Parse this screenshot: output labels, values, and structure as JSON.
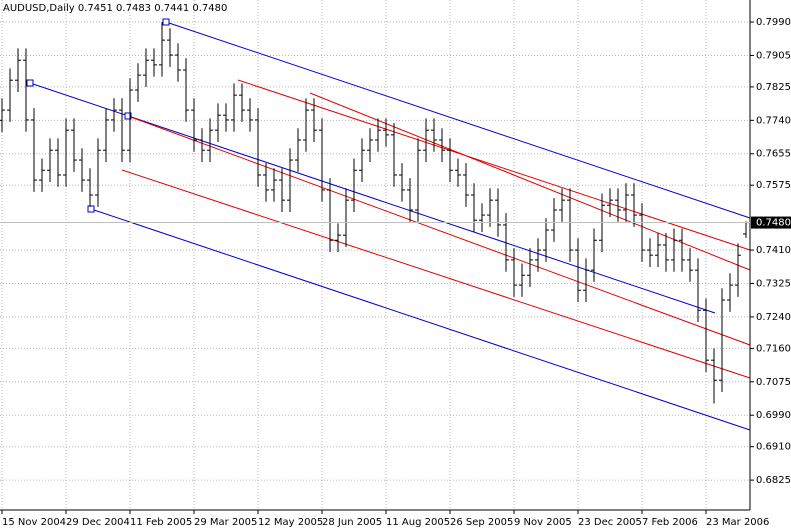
{
  "chart_data": {
    "type": "ohlc",
    "title": "AUDUSD,Daily  0.7451 0.7483 0.7441 0.7480",
    "categories": [
      "15 Nov 2004",
      null,
      null,
      null,
      null,
      null,
      null,
      null,
      "29 Dec 2004",
      null,
      null,
      null,
      null,
      null,
      null,
      null,
      "11 Feb 2005",
      null,
      null,
      null,
      null,
      null,
      null,
      null,
      "29 Mar 2005",
      null,
      null,
      null,
      null,
      null,
      null,
      null,
      "12 May 2005",
      null,
      null,
      null,
      null,
      null,
      null,
      null,
      "28 Jun 2005",
      null,
      null,
      null,
      null,
      null,
      null,
      null,
      "11 Aug 2005",
      null,
      null,
      null,
      null,
      null,
      null,
      null,
      "26 Sep 2005",
      null,
      null,
      null,
      null,
      null,
      null,
      null,
      "9 Nov 2005",
      null,
      null,
      null,
      null,
      null,
      null,
      null,
      "23 Dec 2005",
      null,
      null,
      null,
      null,
      null,
      null,
      null,
      "7 Feb 2006",
      null,
      null,
      null,
      null,
      null,
      null,
      null,
      "23 Mar 2006",
      null,
      null,
      null,
      null,
      null
    ],
    "open": [
      0.774,
      0.7766,
      0.7842,
      0.7893,
      0.7741,
      0.7588,
      0.7613,
      0.7664,
      0.7601,
      0.7715,
      0.7639,
      0.7588,
      0.755,
      0.7664,
      0.7741,
      0.7766,
      0.7664,
      0.7817,
      0.7855,
      0.7893,
      0.7881,
      0.7944,
      0.7906,
      0.7868,
      0.7766,
      0.769,
      0.7664,
      0.7715,
      0.7753,
      0.7741,
      0.7804,
      0.7766,
      0.7741,
      0.7601,
      0.7563,
      0.7588,
      0.7537,
      0.7639,
      0.769,
      0.7766,
      0.7715,
      0.7563,
      0.7435,
      0.7448,
      0.7537,
      0.7613,
      0.7664,
      0.769,
      0.7715,
      0.7703,
      0.7601,
      0.7563,
      0.7512,
      0.7664,
      0.7715,
      0.769,
      0.7664,
      0.7613,
      0.7601,
      0.755,
      0.7486,
      0.7499,
      0.7537,
      0.7474,
      0.7385,
      0.7321,
      0.7346,
      0.7385,
      0.741,
      0.7461,
      0.7512,
      0.7537,
      0.741,
      0.7308,
      0.7359,
      0.7435,
      0.7524,
      0.7537,
      0.7512,
      0.755,
      0.7499,
      0.741,
      0.7397,
      0.7423,
      0.7385,
      0.7435,
      0.7385,
      0.7359,
      0.7257,
      0.713,
      0.7079,
      0.7283,
      0.7321,
      0.7451
    ],
    "high": [
      0.7796,
      0.7872,
      0.7923,
      0.7923,
      0.7771,
      0.7643,
      0.7694,
      0.7694,
      0.7745,
      0.7745,
      0.7669,
      0.7618,
      0.7694,
      0.7771,
      0.7796,
      0.7796,
      0.7847,
      0.7885,
      0.7923,
      0.7923,
      0.799,
      0.7974,
      0.7936,
      0.7898,
      0.7796,
      0.772,
      0.7745,
      0.7783,
      0.7783,
      0.7834,
      0.7834,
      0.7796,
      0.7771,
      0.7631,
      0.7618,
      0.7618,
      0.7669,
      0.772,
      0.7796,
      0.7796,
      0.7745,
      0.7593,
      0.7478,
      0.7567,
      0.7643,
      0.7694,
      0.772,
      0.7745,
      0.7745,
      0.7733,
      0.7631,
      0.7593,
      0.7694,
      0.7745,
      0.7745,
      0.772,
      0.7694,
      0.7643,
      0.7631,
      0.758,
      0.7529,
      0.7567,
      0.7567,
      0.7504,
      0.7415,
      0.7376,
      0.7415,
      0.744,
      0.7491,
      0.7542,
      0.7567,
      0.7567,
      0.744,
      0.7389,
      0.7465,
      0.7554,
      0.7567,
      0.7567,
      0.758,
      0.758,
      0.7529,
      0.744,
      0.7453,
      0.7453,
      0.7465,
      0.7465,
      0.7415,
      0.7389,
      0.7287,
      0.716,
      0.7313,
      0.7351,
      0.7427,
      0.7483
    ],
    "low": [
      0.771,
      0.7736,
      0.7812,
      0.7711,
      0.7558,
      0.7558,
      0.7583,
      0.7571,
      0.7571,
      0.7609,
      0.7558,
      0.752,
      0.752,
      0.7634,
      0.7711,
      0.7634,
      0.7634,
      0.7787,
      0.7825,
      0.7851,
      0.7851,
      0.7876,
      0.7838,
      0.7736,
      0.766,
      0.7634,
      0.7634,
      0.7685,
      0.7711,
      0.7711,
      0.7736,
      0.7711,
      0.7571,
      0.7533,
      0.7533,
      0.7507,
      0.7507,
      0.7609,
      0.766,
      0.7685,
      0.7533,
      0.7405,
      0.7405,
      0.7418,
      0.7507,
      0.7583,
      0.7634,
      0.766,
      0.7673,
      0.7571,
      0.7533,
      0.7482,
      0.7482,
      0.7634,
      0.766,
      0.7634,
      0.7583,
      0.7571,
      0.752,
      0.7456,
      0.7456,
      0.7469,
      0.7444,
      0.7355,
      0.7291,
      0.7291,
      0.7316,
      0.7355,
      0.738,
      0.7431,
      0.7482,
      0.738,
      0.7278,
      0.7278,
      0.7329,
      0.7405,
      0.7494,
      0.7482,
      0.7482,
      0.7469,
      0.738,
      0.7367,
      0.7367,
      0.7355,
      0.7355,
      0.7355,
      0.7329,
      0.7227,
      0.71,
      0.702,
      0.7049,
      0.7253,
      0.7291,
      0.7441
    ],
    "close": [
      0.7766,
      0.7842,
      0.7893,
      0.7741,
      0.7588,
      0.7613,
      0.7664,
      0.7601,
      0.7715,
      0.7639,
      0.7588,
      0.755,
      0.7664,
      0.7741,
      0.7766,
      0.7664,
      0.7817,
      0.7855,
      0.7893,
      0.7881,
      0.7944,
      0.7906,
      0.7868,
      0.7766,
      0.769,
      0.7664,
      0.7715,
      0.7753,
      0.7741,
      0.7804,
      0.7766,
      0.7741,
      0.7601,
      0.7563,
      0.7588,
      0.7537,
      0.7639,
      0.769,
      0.7766,
      0.7715,
      0.7563,
      0.7435,
      0.7448,
      0.7537,
      0.7613,
      0.7664,
      0.769,
      0.7715,
      0.7703,
      0.7601,
      0.7563,
      0.7512,
      0.7664,
      0.7715,
      0.769,
      0.7664,
      0.7613,
      0.7601,
      0.755,
      0.7486,
      0.7499,
      0.7537,
      0.7474,
      0.7385,
      0.7321,
      0.7346,
      0.7385,
      0.741,
      0.7461,
      0.7512,
      0.7537,
      0.741,
      0.7308,
      0.7359,
      0.7435,
      0.7524,
      0.7537,
      0.7512,
      0.755,
      0.7499,
      0.741,
      0.7397,
      0.7423,
      0.7385,
      0.7435,
      0.7385,
      0.7359,
      0.7257,
      0.713,
      0.7079,
      0.7283,
      0.7321,
      0.7397,
      0.748
    ],
    "color": "#000000",
    "ylim": [
      0.6749,
      0.8046
    ],
    "yticks": [
      {
        "value": 0.799,
        "label": "0.7990"
      },
      {
        "value": 0.7905,
        "label": "0.7905"
      },
      {
        "value": 0.7825,
        "label": "0.7825"
      },
      {
        "value": 0.774,
        "label": "0.7740"
      },
      {
        "value": 0.7655,
        "label": "0.7655"
      },
      {
        "value": 0.7575,
        "label": "0.7575"
      },
      {
        "value": 0.741,
        "label": "0.7410"
      },
      {
        "value": 0.7325,
        "label": "0.7325"
      },
      {
        "value": 0.724,
        "label": "0.7240"
      },
      {
        "value": 0.716,
        "label": "0.7160"
      },
      {
        "value": 0.7075,
        "label": "0.7075"
      },
      {
        "value": 0.699,
        "label": "0.6990"
      },
      {
        "value": 0.691,
        "label": "0.6910"
      },
      {
        "value": 0.6825,
        "label": "0.6825"
      }
    ],
    "grid": true,
    "last_price": {
      "value": 0.748,
      "label": "0.7480"
    }
  }
}
